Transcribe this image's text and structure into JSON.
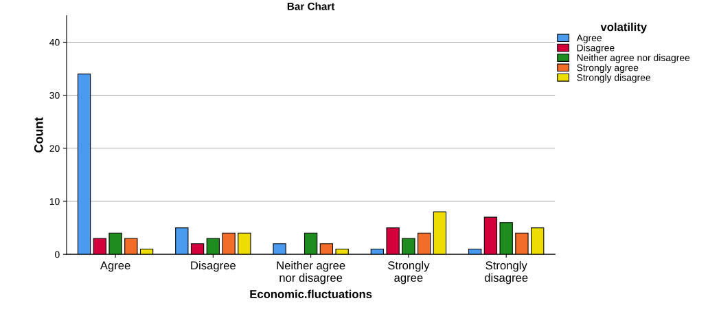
{
  "chart_data": {
    "type": "bar",
    "title": "Bar Chart",
    "xlabel": "Economic.fluctuations",
    "ylabel": "Count",
    "legend_title": "volatility",
    "categories": [
      "Agree",
      "Disagree",
      "Neither agree\nnor disagree",
      "Strongly\nagree",
      "Strongly\ndisagree"
    ],
    "series": [
      {
        "name": "Agree",
        "color": "#4a9bef",
        "values": [
          34,
          5,
          2,
          1,
          1
        ]
      },
      {
        "name": "Disagree",
        "color": "#d3003c",
        "values": [
          3,
          2,
          null,
          5,
          7
        ]
      },
      {
        "name": "Neither agree nor disagree",
        "color": "#1e8c1e",
        "values": [
          4,
          3,
          4,
          3,
          6
        ]
      },
      {
        "name": "Strongly agree",
        "color": "#f36d2a",
        "values": [
          3,
          4,
          2,
          4,
          4
        ]
      },
      {
        "name": "Strongly disagree",
        "color": "#eedd00",
        "values": [
          1,
          4,
          1,
          8,
          5
        ]
      }
    ],
    "ylim": [
      0,
      45
    ],
    "yticks": [
      0,
      10,
      20,
      30,
      40
    ],
    "grid": "y",
    "legend": "top right"
  }
}
